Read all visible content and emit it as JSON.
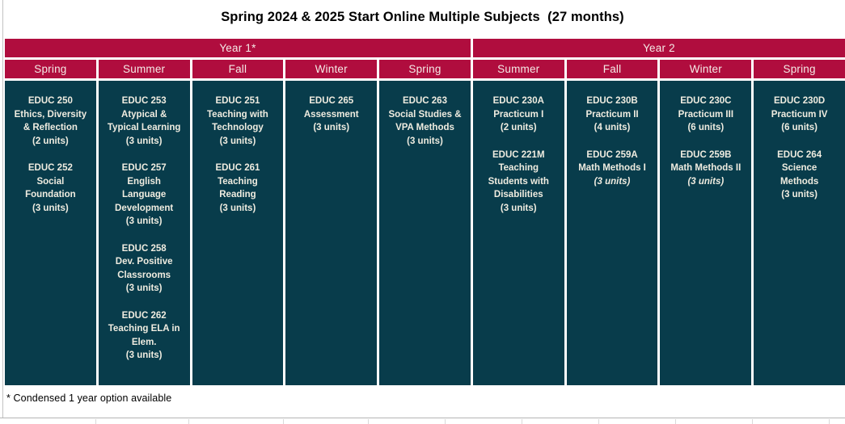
{
  "title": "Spring 2024 & 2025 Start Online Multiple Subjects  (27 months)",
  "footnote": "* Condensed 1 year option available",
  "colors": {
    "header_red": "#b00d3e",
    "cell_teal": "#083c4b",
    "header_text": "#f4eae6",
    "cell_text": "#efece0"
  },
  "table": {
    "year_groups": [
      {
        "label": "Year 1*",
        "span": 5
      },
      {
        "label": "Year 2",
        "span": 4
      }
    ],
    "columns": [
      {
        "year": "Year 1*",
        "season": "Spring",
        "courses": [
          {
            "lines": [
              "EDUC 250",
              "Ethics, Diversity",
              "& Reflection"
            ],
            "units": "(2 units)",
            "units_italic": false
          },
          {
            "lines": [
              "EDUC 252",
              "Social",
              "Foundation"
            ],
            "units": "(3 units)",
            "units_italic": false
          }
        ]
      },
      {
        "year": "Year 1*",
        "season": "Summer",
        "courses": [
          {
            "lines": [
              "EDUC 253",
              "Atypical &",
              "Typical Learning"
            ],
            "units": "(3 units)",
            "units_italic": false
          },
          {
            "lines": [
              "EDUC 257",
              "English",
              "Language",
              "Development"
            ],
            "units": "(3 units)",
            "units_italic": false
          },
          {
            "lines": [
              "EDUC 258",
              "Dev. Positive",
              "Classrooms"
            ],
            "units": "(3 units)",
            "units_italic": false
          },
          {
            "lines": [
              "EDUC 262",
              "Teaching ELA in",
              "Elem."
            ],
            "units": "(3 units)",
            "units_italic": false
          }
        ]
      },
      {
        "year": "Year 1*",
        "season": "Fall",
        "courses": [
          {
            "lines": [
              "EDUC 251",
              "Teaching with",
              "Technology"
            ],
            "units": "(3 units)",
            "units_italic": false
          },
          {
            "lines": [
              "EDUC 261",
              "Teaching",
              "Reading"
            ],
            "units": "(3 units)",
            "units_italic": false
          }
        ]
      },
      {
        "year": "Year 1*",
        "season": "Winter",
        "courses": [
          {
            "lines": [
              "EDUC 265",
              "Assessment"
            ],
            "units": "(3 units)",
            "units_italic": false
          }
        ]
      },
      {
        "year": "Year 1*",
        "season": "Spring",
        "courses": [
          {
            "lines": [
              "EDUC 263",
              "Social Studies &",
              "VPA Methods"
            ],
            "units": "(3 units)",
            "units_italic": false
          }
        ]
      },
      {
        "year": "Year 2",
        "season": "Summer",
        "courses": [
          {
            "lines": [
              "EDUC 230A",
              "Practicum I"
            ],
            "units": "(2 units)",
            "units_italic": false
          },
          {
            "lines": [
              "EDUC 221M",
              "Teaching",
              "Students with",
              "Disabilities"
            ],
            "units": "(3 units)",
            "units_italic": false
          }
        ]
      },
      {
        "year": "Year 2",
        "season": "Fall",
        "courses": [
          {
            "lines": [
              "EDUC 230B",
              "Practicum II"
            ],
            "units": "(4 units)",
            "units_italic": false
          },
          {
            "lines": [
              "EDUC 259A",
              "Math Methods I"
            ],
            "units": "(3 units)",
            "units_italic": true
          }
        ]
      },
      {
        "year": "Year 2",
        "season": "Winter",
        "courses": [
          {
            "lines": [
              "EDUC 230C",
              "Practicum III"
            ],
            "units": "(6 units)",
            "units_italic": false
          },
          {
            "lines": [
              "EDUC 259B",
              "Math Methods II"
            ],
            "units": "(3 units)",
            "units_italic": true
          }
        ]
      },
      {
        "year": "Year 2",
        "season": "Spring",
        "courses": [
          {
            "lines": [
              "EDUC 230D",
              "Practicum IV"
            ],
            "units": "(6 units)",
            "units_italic": false
          },
          {
            "lines": [
              "EDUC 264",
              "Science",
              "Methods"
            ],
            "units": "(3 units)",
            "units_italic": false
          }
        ]
      }
    ]
  }
}
